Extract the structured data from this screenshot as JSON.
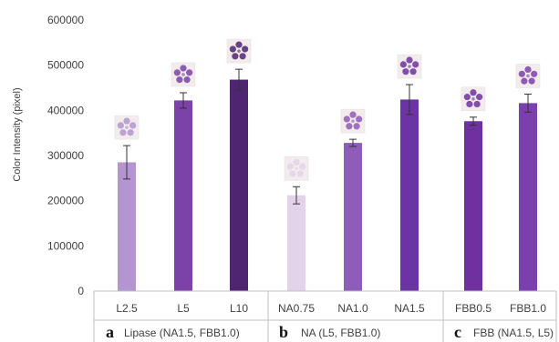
{
  "chart_data": {
    "type": "bar",
    "ylabel": "Color Intensity (pixel)",
    "ylim": [
      0,
      600000
    ],
    "yticks": [
      0,
      100000,
      200000,
      300000,
      400000,
      500000,
      600000
    ],
    "ytick_labels": [
      "0",
      "100000",
      "200000",
      "300000",
      "400000",
      "500000",
      "600000"
    ],
    "grid": false,
    "categories": [
      "L2.5",
      "L5",
      "L10",
      "NA0.75",
      "NA1.0",
      "NA1.5",
      "FBB0.5",
      "FBB1.0"
    ],
    "values": [
      285000,
      422000,
      468000,
      212000,
      328000,
      424000,
      376000,
      416000
    ],
    "errors": [
      37000,
      17000,
      23000,
      19000,
      8000,
      33000,
      9000,
      20000
    ],
    "colors": [
      "#b395cf",
      "#7b42a8",
      "#4f2470",
      "#e3d3ea",
      "#8e5db9",
      "#6c33a3",
      "#6f31a0",
      "#7b3fae"
    ],
    "groups": [
      {
        "letter": "a",
        "label": "Lipase (NA1.5, FBB1.0)",
        "categories": [
          "L2.5",
          "L5",
          "L10"
        ]
      },
      {
        "letter": "b",
        "label": "NA (L5, FBB1.0)",
        "categories": [
          "NA0.75",
          "NA1.0",
          "NA1.5"
        ]
      },
      {
        "letter": "c",
        "label": "FBB (NA1.5, L5)",
        "categories": [
          "FBB0.5",
          "FBB1.0"
        ]
      }
    ],
    "inset_icons": [
      "flower-spot-icon",
      "flower-spot-icon",
      "flower-spot-icon",
      "flower-spot-icon",
      "flower-spot-icon",
      "flower-spot-icon",
      "flower-spot-icon",
      "flower-spot-icon"
    ]
  }
}
